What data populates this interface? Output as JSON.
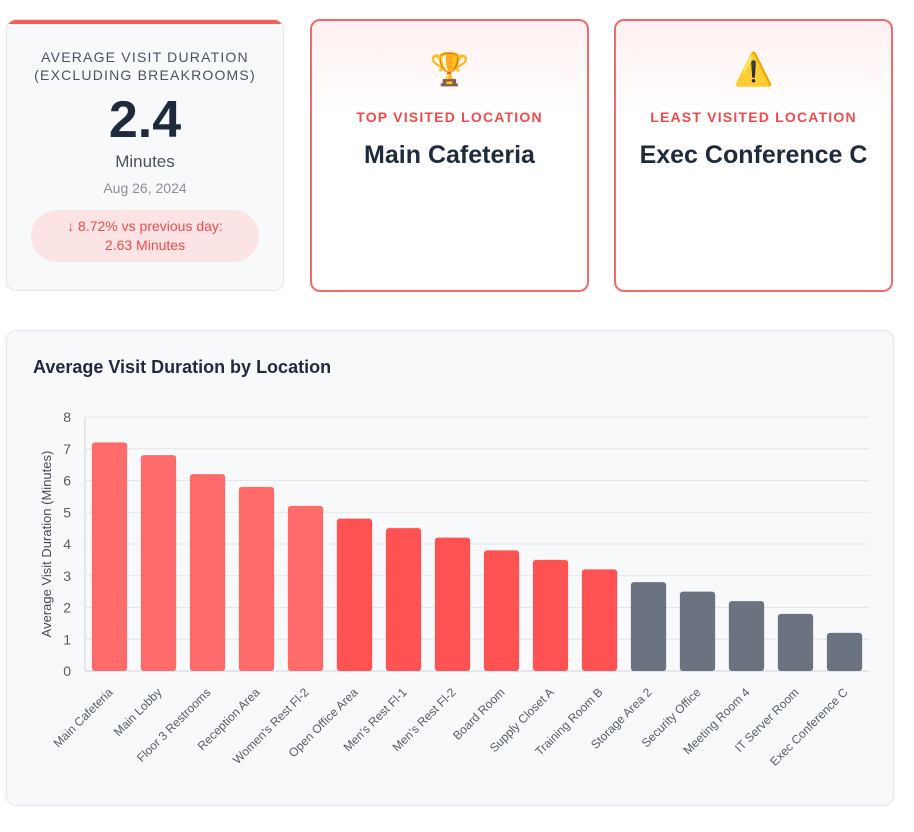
{
  "kpi_avg": {
    "label_line1": "AVERAGE VISIT DURATION",
    "label_line2": "(EXCLUDING BREAKROOMS)",
    "value": "2.4",
    "unit": "Minutes",
    "date": "Aug 26, 2024",
    "change_line1": "↓ 8.72% vs previous day:",
    "change_line2": "2.63 Minutes"
  },
  "top_location": {
    "icon": "trophy-icon",
    "glyph": "🏆",
    "label": "TOP VISITED LOCATION",
    "name": "Main Cafeteria"
  },
  "least_location": {
    "icon": "warning-icon",
    "glyph": "⚠️",
    "label": "LEAST VISITED LOCATION",
    "name": "Exec Conference C"
  },
  "colors": {
    "accent": "#fd5a5a",
    "bar_light_red": "#ff6b6b",
    "bar_red": "#ff5252",
    "bar_gray": "#6b7380"
  },
  "chart_data": {
    "type": "bar",
    "title": "Average Visit Duration by Location",
    "xlabel": "",
    "ylabel": "Average Visit Duration (Minutes)",
    "ylim": [
      0,
      8
    ],
    "yticks": [
      0,
      1,
      2,
      3,
      4,
      5,
      6,
      7,
      8
    ],
    "grid": true,
    "categories": [
      "Main Cafeteria",
      "Main Lobby",
      "Floor 3 Restrooms",
      "Reception Area",
      "Women's Rest Fl-2",
      "Open Office Area",
      "Men's Rest Fl-1",
      "Men's Rest Fl-2",
      "Board Room",
      "Supply Closet A",
      "Training Room B",
      "Storage Area 2",
      "Security Office",
      "Meeting Room 4",
      "IT Server Room",
      "Exec Conference C"
    ],
    "values": [
      7.2,
      6.8,
      6.2,
      5.8,
      5.2,
      4.8,
      4.5,
      4.2,
      3.8,
      3.5,
      3.2,
      2.8,
      2.5,
      2.2,
      1.8,
      1.2
    ],
    "bar_colors": [
      "#ff6b6b",
      "#ff6b6b",
      "#ff6b6b",
      "#ff6b6b",
      "#ff6b6b",
      "#ff5252",
      "#ff5252",
      "#ff5252",
      "#ff5252",
      "#ff5252",
      "#ff5252",
      "#6b7380",
      "#6b7380",
      "#6b7380",
      "#6b7380",
      "#6b7380"
    ]
  }
}
